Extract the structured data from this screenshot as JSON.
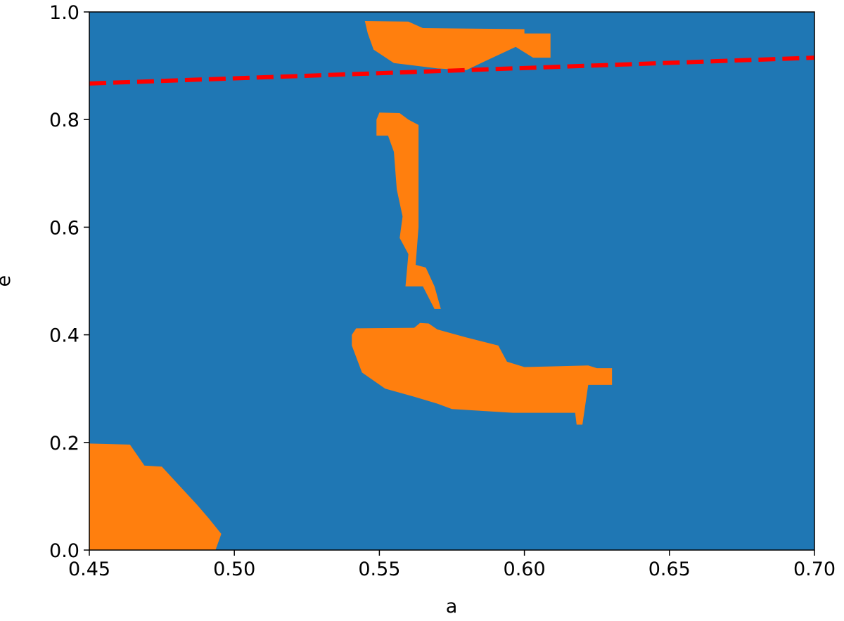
{
  "chart_data": {
    "type": "region",
    "x_label": "a",
    "y_label": "e",
    "xlim": [
      0.45,
      0.7
    ],
    "ylim": [
      0,
      1
    ],
    "xticks": [
      0.45,
      {
        "value": 0.5,
        "label": "0.50"
      },
      0.55,
      {
        "value": 0.6,
        "label": "0.60"
      },
      0.65,
      {
        "value": 0.7,
        "label": "0.70"
      }
    ],
    "yticks": [
      {
        "value": 0,
        "label": "0.0"
      },
      0.2,
      0.4,
      0.6,
      0.8,
      {
        "value": 1,
        "label": "1.0"
      }
    ],
    "background_color": "#1f77b4",
    "region_color": "#ff7f0e",
    "regions": [
      {
        "x": [
          0.45,
          0.45,
          0.464,
          0.469,
          0.475,
          0.481,
          0.487,
          0.491,
          0.4955,
          0.4935
        ],
        "y": [
          0,
          0.198,
          0.196,
          0.157,
          0.155,
          0.12,
          0.085,
          0.06,
          0.03,
          0
        ]
      },
      {
        "x": [
          0.545,
          0.56,
          0.565,
          0.6,
          0.6,
          0.609,
          0.609,
          0.603,
          0.597,
          0.587,
          0.58,
          0.57,
          0.555,
          0.548,
          0.546
        ],
        "y": [
          0.983,
          0.982,
          0.97,
          0.968,
          0.96,
          0.96,
          0.915,
          0.915,
          0.935,
          0.91,
          0.892,
          0.895,
          0.905,
          0.93,
          0.96
        ]
      },
      {
        "x": [
          0.549,
          0.55,
          0.557,
          0.56,
          0.5635,
          0.5635,
          0.5625,
          0.566,
          0.569,
          0.5712,
          0.569,
          0.565,
          0.559,
          0.56,
          0.557,
          0.558,
          0.556,
          0.555,
          0.553,
          0.549
        ],
        "y": [
          0.8,
          0.813,
          0.812,
          0.8,
          0.79,
          0.6,
          0.53,
          0.525,
          0.49,
          0.448,
          0.448,
          0.49,
          0.49,
          0.55,
          0.58,
          0.62,
          0.67,
          0.74,
          0.77,
          0.77
        ]
      },
      {
        "x": [
          0.5405,
          0.542,
          0.562,
          0.564,
          0.567,
          0.57,
          0.58,
          0.591,
          0.594,
          0.6,
          0.622,
          0.625,
          0.6302,
          0.6302,
          0.622,
          0.62,
          0.618,
          0.6175,
          0.596,
          0.575,
          0.57,
          0.562,
          0.552,
          0.544,
          0.5405
        ],
        "y": [
          0.4,
          0.412,
          0.413,
          0.422,
          0.421,
          0.41,
          0.395,
          0.38,
          0.35,
          0.34,
          0.343,
          0.338,
          0.338,
          0.307,
          0.307,
          0.233,
          0.233,
          0.255,
          0.255,
          0.262,
          0.272,
          0.285,
          0.3,
          0.33,
          0.38
        ]
      }
    ],
    "line": {
      "x": [
        0.45,
        0.7
      ],
      "y": [
        0.867,
        0.915
      ],
      "color": "#ff0000"
    }
  }
}
